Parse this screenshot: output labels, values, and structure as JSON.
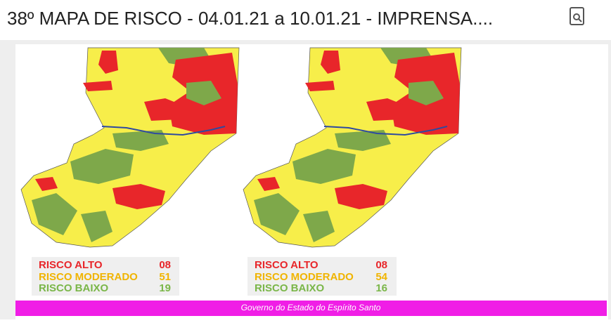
{
  "header": {
    "title": "38º MAPA DE RISCO - 04.01.21 a 10.01.21 - IMPRENSA...."
  },
  "maps": [
    {
      "legend": [
        {
          "label": "RISCO ALTO",
          "value": "08"
        },
        {
          "label": "RISCO MODERADO",
          "value": "51"
        },
        {
          "label": "RISCO BAIXO",
          "value": "19"
        }
      ]
    },
    {
      "legend": [
        {
          "label": "RISCO ALTO",
          "value": "08"
        },
        {
          "label": "RISCO MODERADO",
          "value": "54"
        },
        {
          "label": "RISCO BAIXO",
          "value": "16"
        }
      ]
    }
  ],
  "footer": "Governo do Estado do Espírito Santo"
}
